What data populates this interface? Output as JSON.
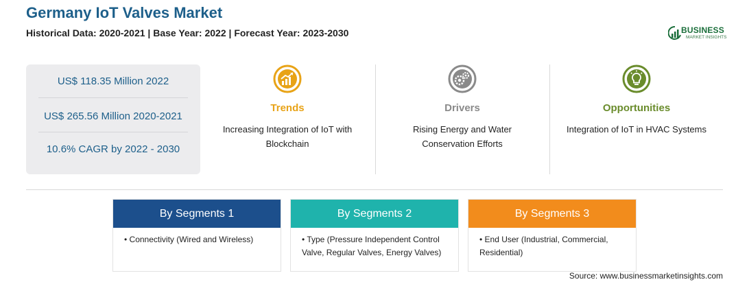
{
  "header": {
    "title": "Germany IoT Valves Market",
    "subtitle": "Historical Data: 2020-2021 | Base Year: 2022 | Forecast Year: 2023-2030"
  },
  "logo": {
    "name": "BUSINESS",
    "sub": "MARKET INSIGHTS"
  },
  "stats": [
    "US$ 118.35 Million 2022",
    "US$ 265.56 Million 2020-2021",
    "10.6% CAGR by 2022 - 2030"
  ],
  "columns": [
    {
      "icon": "chart-growth-icon",
      "title": "Trends",
      "text": "Increasing Integration of IoT with Blockchain",
      "color": "#e8a317"
    },
    {
      "icon": "gears-icon",
      "title": "Drivers",
      "text": "Rising Energy and Water Conservation Efforts",
      "color": "#8a8a8a"
    },
    {
      "icon": "lightbulb-icon",
      "title": "Opportunities",
      "text": "Integration of IoT in HVAC Systems",
      "color": "#6a8c2c"
    }
  ],
  "segments": [
    {
      "title": "By Segments 1",
      "item": "• Connectivity (Wired and Wireless)",
      "color": "#1c4f8c"
    },
    {
      "title": "By Segments 2",
      "item": "• Type (Pressure Independent Control Valve, Regular Valves, Energy Valves)",
      "color": "#1fb3ac"
    },
    {
      "title": "By Segments 3",
      "item": "• End User (Industrial, Commercial, Residential)",
      "color": "#f28c1c"
    }
  ],
  "source": "Source: www.businessmarketinsights.com"
}
